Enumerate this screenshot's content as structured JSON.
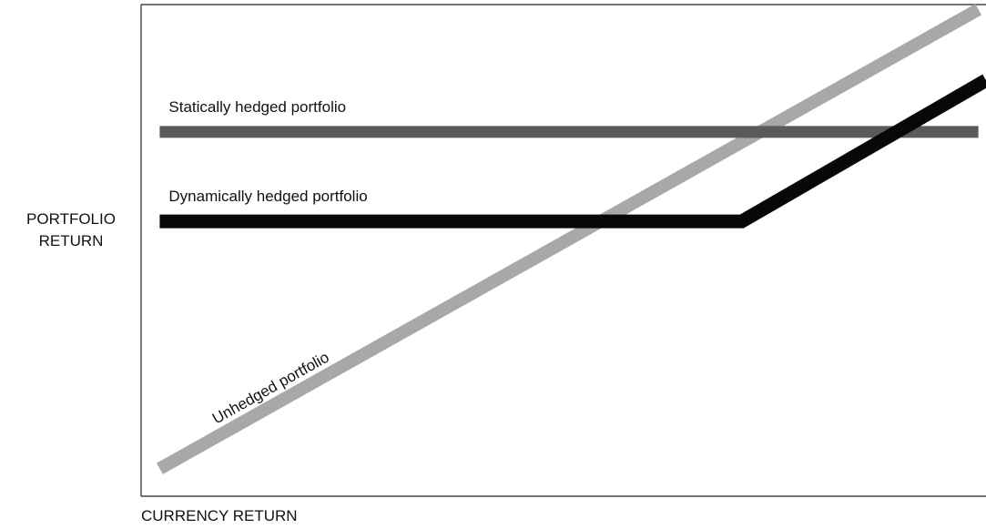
{
  "chart_data": {
    "type": "line",
    "ylabel": [
      "PORTFOLIO",
      "RETURN"
    ],
    "xlabel": "CURRENCY RETURN",
    "xlim": [
      0,
      100
    ],
    "ylim": [
      0,
      100
    ],
    "series": [
      {
        "name": "Unhedged portfolio",
        "color": "#a8a8a8",
        "x": [
          2.2,
          99.1
        ],
        "values": [
          5.6,
          99
        ]
      },
      {
        "name": "Statically hedged portfolio",
        "color": "#5a5a5a",
        "x": [
          2.2,
          99.1
        ],
        "values": [
          74.1,
          74.1
        ]
      },
      {
        "name": "Dynamically hedged portfolio",
        "color": "#080808",
        "x": [
          2.2,
          71.1,
          100
        ],
        "values": [
          55.9,
          55.9,
          84.6
        ]
      }
    ]
  }
}
